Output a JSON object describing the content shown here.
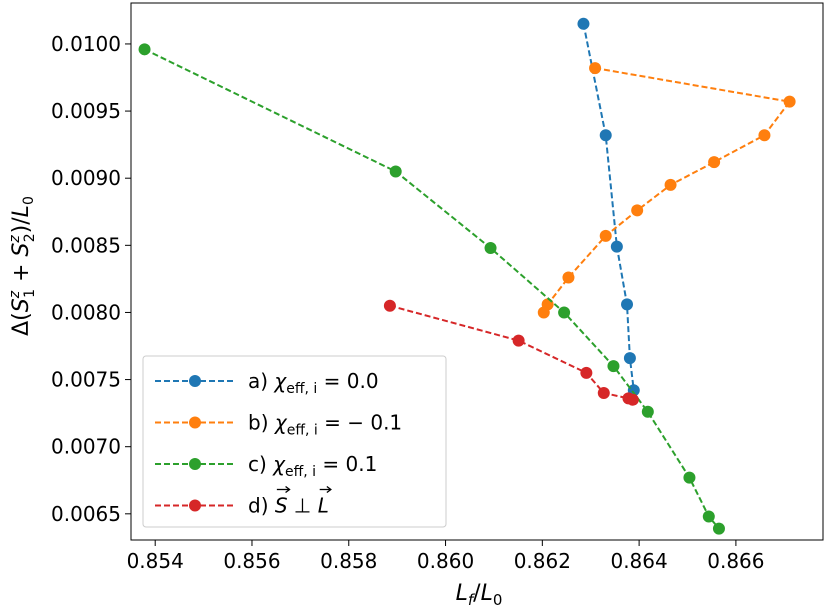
{
  "chart_data": {
    "type": "line",
    "xlabel": "L_f/L_0",
    "ylabel": "Δ(S_1^z + S_2^z)/L_0",
    "xlim": [
      0.8535,
      0.8678
    ],
    "ylim": [
      0.006305,
      0.010305
    ],
    "x_ticks": [
      0.854,
      0.856,
      0.858,
      0.86,
      0.862,
      0.864,
      0.866
    ],
    "x_tick_labels": [
      "0.854",
      "0.856",
      "0.858",
      "0.860",
      "0.862",
      "0.864",
      "0.866"
    ],
    "y_ticks": [
      0.0065,
      0.007,
      0.0075,
      0.008,
      0.0085,
      0.009,
      0.0095,
      0.01
    ],
    "y_tick_labels": [
      "0.0065",
      "0.0070",
      "0.0075",
      "0.0080",
      "0.0085",
      "0.0090",
      "0.0095",
      "0.0100"
    ],
    "legend_position": "lower-left",
    "series": [
      {
        "name": "a) χeff, i = 0.0",
        "label_prefix": "a) ",
        "label_chi": "χ",
        "label_sub": "eff, i",
        "label_value": " = 0.0",
        "color": "#1f77b4",
        "points": [
          [
            0.86285,
            0.01015
          ],
          [
            0.86331,
            0.00932
          ],
          [
            0.86354,
            0.00849
          ],
          [
            0.86375,
            0.00806
          ],
          [
            0.86381,
            0.00766
          ],
          [
            0.86389,
            0.00742
          ]
        ]
      },
      {
        "name": "b) χeff, i = −0.1",
        "label_prefix": "b) ",
        "label_chi": "χ",
        "label_sub": "eff, i",
        "label_value": " = − 0.1",
        "color": "#ff7f0e",
        "points": [
          [
            0.86309,
            0.00982
          ],
          [
            0.86711,
            0.00957
          ],
          [
            0.86659,
            0.00932
          ],
          [
            0.86555,
            0.00912
          ],
          [
            0.86465,
            0.00895
          ],
          [
            0.86396,
            0.00876
          ],
          [
            0.86331,
            0.00857
          ],
          [
            0.86254,
            0.00826
          ],
          [
            0.86211,
            0.00806
          ],
          [
            0.86203,
            0.008
          ]
        ]
      },
      {
        "name": "c) χeff, i = 0.1",
        "label_prefix": "c) ",
        "label_chi": "χ",
        "label_sub": "eff, i",
        "label_value": " = 0.1",
        "color": "#2ca02c",
        "points": [
          [
            0.85378,
            0.00996
          ],
          [
            0.85897,
            0.00905
          ],
          [
            0.86093,
            0.00848
          ],
          [
            0.86245,
            0.008
          ],
          [
            0.86347,
            0.0076
          ],
          [
            0.86418,
            0.00726
          ],
          [
            0.86504,
            0.00677
          ],
          [
            0.86544,
            0.00648
          ],
          [
            0.86565,
            0.00639
          ]
        ]
      },
      {
        "name": "d) S ⊥ L",
        "label_prefix": "d) ",
        "label_vec1": "S",
        "label_perp": " ⊥ ",
        "label_vec2": "L",
        "color": "#d62728",
        "points": [
          [
            0.85885,
            0.00805
          ],
          [
            0.86151,
            0.00779
          ],
          [
            0.86291,
            0.00755
          ],
          [
            0.86327,
            0.0074
          ],
          [
            0.86378,
            0.00736
          ],
          [
            0.86387,
            0.00735
          ]
        ]
      }
    ]
  }
}
